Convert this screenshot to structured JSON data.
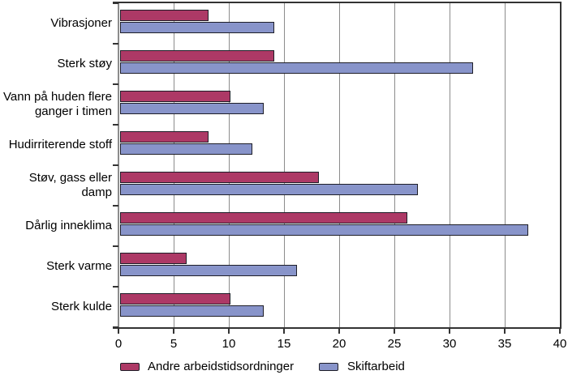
{
  "chart_data": {
    "type": "bar",
    "orientation": "horizontal",
    "title": "",
    "xlabel": "",
    "ylabel": "",
    "categories": [
      "Vibrasjoner",
      "Sterk støy",
      "Vann på huden flere\nganger i timen",
      "Hudirriterende stoff",
      "Støv, gass eller\ndamp",
      "Dårlig inneklima",
      "Sterk varme",
      "Sterk kulde"
    ],
    "series": [
      {
        "name": "Andre arbeidstidsordninger",
        "color": "#AD3966",
        "values": [
          8,
          14,
          10,
          8,
          18,
          26,
          6,
          10
        ]
      },
      {
        "name": "Skiftarbeid",
        "color": "#8894CA",
        "values": [
          14,
          32,
          13,
          12,
          27,
          37,
          16,
          13
        ]
      }
    ],
    "xlim": [
      0,
      40
    ],
    "x_ticks": [
      0,
      5,
      10,
      15,
      20,
      25,
      30,
      35,
      40
    ],
    "grid": "vertical-gridlines",
    "legend_position": "bottom"
  },
  "colors": {
    "grid": "#8C8C8C",
    "frame": "#333333",
    "axis_left": "#8C8C8C",
    "bar_border": "#1E1E28",
    "text": "#000000",
    "background": "#FFFFFF"
  }
}
